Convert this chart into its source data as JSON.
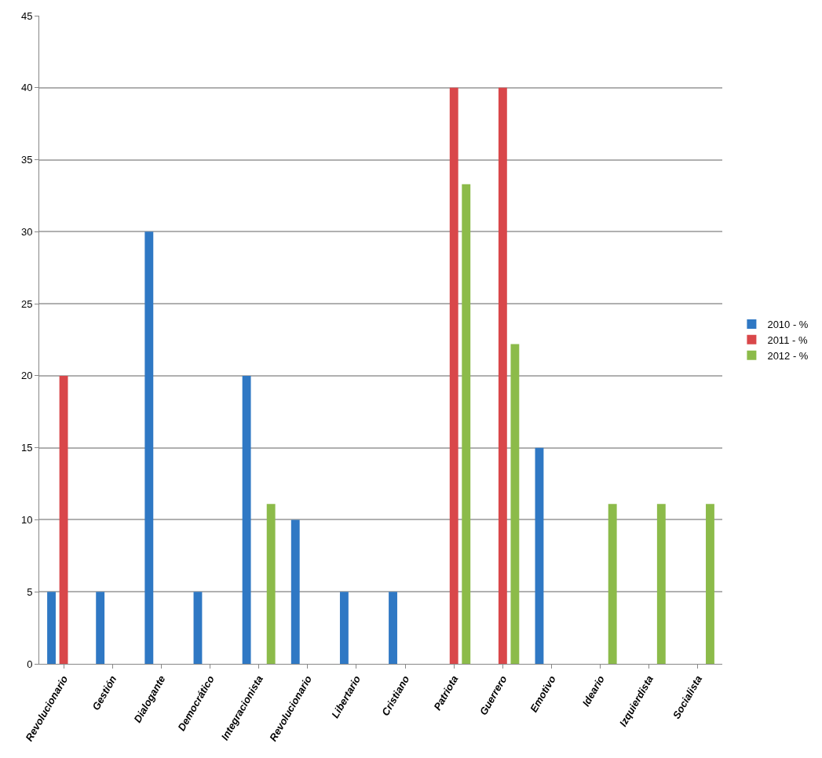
{
  "chart_data": {
    "type": "bar",
    "categories": [
      "Revolucionario",
      "Gestión",
      "Dialogante",
      "Democrático",
      "Integracionista",
      "Revolucionario",
      "Libertario",
      "Cristiano",
      "Patriota",
      "Guerrero",
      "Emotivo",
      "Ideario",
      "Izquierdista",
      "Socialista"
    ],
    "series": [
      {
        "name": "2010 - %",
        "color": "#2f78c4",
        "values": [
          5,
          5,
          30,
          5,
          20,
          10,
          5,
          5,
          null,
          null,
          15,
          null,
          null,
          null
        ]
      },
      {
        "name": "2011 - %",
        "color": "#d9474a",
        "values": [
          20,
          null,
          null,
          null,
          null,
          null,
          null,
          null,
          40,
          40,
          null,
          null,
          null,
          null
        ]
      },
      {
        "name": "2012 - %",
        "color": "#8cbb4a",
        "values": [
          null,
          null,
          null,
          null,
          11.1,
          null,
          null,
          null,
          33.3,
          22.2,
          null,
          11.1,
          11.1,
          11.1
        ]
      }
    ],
    "ylim": [
      0,
      45
    ],
    "yticks": [
      0,
      5,
      10,
      15,
      20,
      25,
      30,
      35,
      40,
      45
    ],
    "grid": "y",
    "legend": "right"
  }
}
